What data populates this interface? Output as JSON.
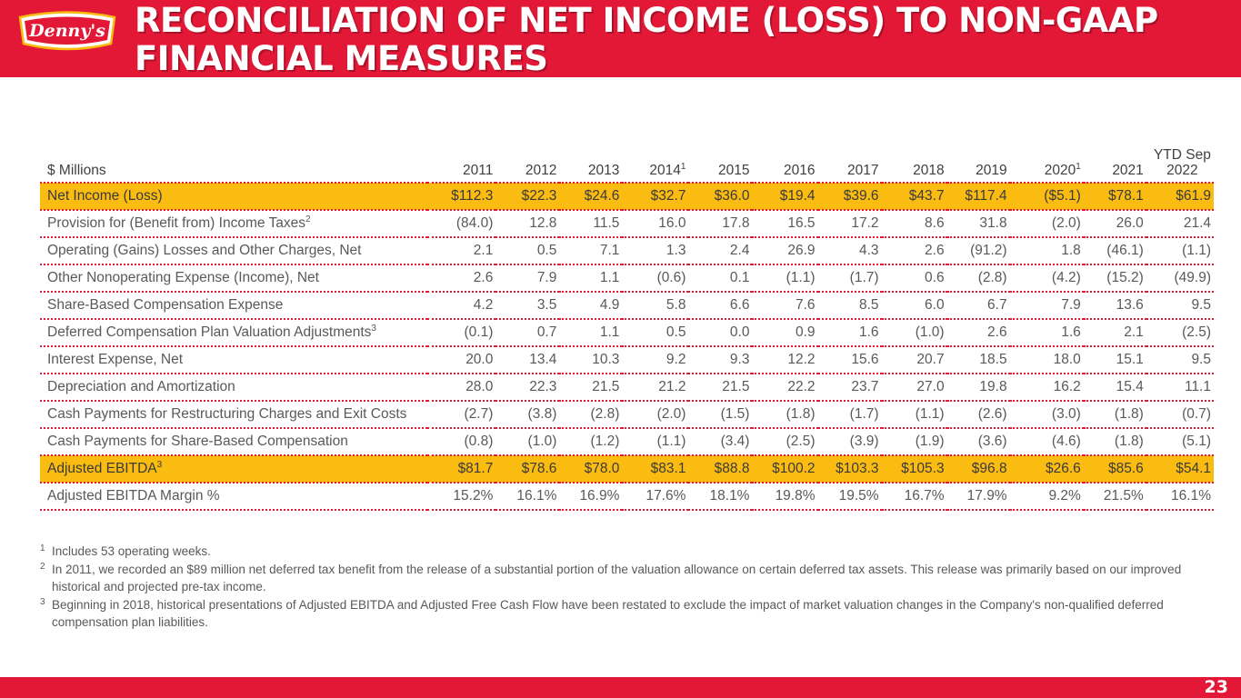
{
  "header": {
    "title": "RECONCILIATION OF NET INCOME (LOSS) TO NON-GAAP FINANCIAL MEASURES",
    "logo_text": "Denny's",
    "bar_color": "#e31837"
  },
  "table": {
    "unit_label": "$ Millions",
    "columns": [
      {
        "label": "2011",
        "sup": ""
      },
      {
        "label": "2012",
        "sup": ""
      },
      {
        "label": "2013",
        "sup": ""
      },
      {
        "label": "2014",
        "sup": "1"
      },
      {
        "label": "2015",
        "sup": ""
      },
      {
        "label": "2016",
        "sup": ""
      },
      {
        "label": "2017",
        "sup": ""
      },
      {
        "label": "2018",
        "sup": ""
      },
      {
        "label": "2019",
        "sup": ""
      },
      {
        "label": "2020",
        "sup": "1"
      },
      {
        "label": "2021",
        "sup": ""
      },
      {
        "label": "YTD Sep 2022",
        "sup": ""
      }
    ],
    "rows": [
      {
        "label": "Net Income (Loss)",
        "sup": "",
        "highlight": true,
        "values": [
          "$112.3",
          "$22.3",
          "$24.6",
          "$32.7",
          "$36.0",
          "$19.4",
          "$39.6",
          "$43.7",
          "$117.4",
          "($5.1)",
          "$78.1",
          "$61.9"
        ]
      },
      {
        "label": "Provision for (Benefit from) Income Taxes",
        "sup": "2",
        "highlight": false,
        "values": [
          "(84.0)",
          "12.8",
          "11.5",
          "16.0",
          "17.8",
          "16.5",
          "17.2",
          "8.6",
          "31.8",
          "(2.0)",
          "26.0",
          "21.4"
        ]
      },
      {
        "label": "Operating (Gains) Losses and Other Charges, Net",
        "sup": "",
        "highlight": false,
        "values": [
          "2.1",
          "0.5",
          "7.1",
          "1.3",
          "2.4",
          "26.9",
          "4.3",
          "2.6",
          "(91.2)",
          "1.8",
          "(46.1)",
          "(1.1)"
        ]
      },
      {
        "label": "Other Nonoperating Expense (Income), Net",
        "sup": "",
        "highlight": false,
        "values": [
          "2.6",
          "7.9",
          "1.1",
          "(0.6)",
          "0.1",
          "(1.1)",
          "(1.7)",
          "0.6",
          "(2.8)",
          "(4.2)",
          "(15.2)",
          "(49.9)"
        ]
      },
      {
        "label": "Share-Based Compensation Expense",
        "sup": "",
        "highlight": false,
        "values": [
          "4.2",
          "3.5",
          "4.9",
          "5.8",
          "6.6",
          "7.6",
          "8.5",
          "6.0",
          "6.7",
          "7.9",
          "13.6",
          "9.5"
        ]
      },
      {
        "label": "Deferred Compensation Plan Valuation Adjustments",
        "sup": "3",
        "highlight": false,
        "values": [
          "(0.1)",
          "0.7",
          "1.1",
          "0.5",
          "0.0",
          "0.9",
          "1.6",
          "(1.0)",
          "2.6",
          "1.6",
          "2.1",
          "(2.5)"
        ]
      },
      {
        "label": "Interest Expense, Net",
        "sup": "",
        "highlight": false,
        "values": [
          "20.0",
          "13.4",
          "10.3",
          "9.2",
          "9.3",
          "12.2",
          "15.6",
          "20.7",
          "18.5",
          "18.0",
          "15.1",
          "9.5"
        ]
      },
      {
        "label": "Depreciation and Amortization",
        "sup": "",
        "highlight": false,
        "values": [
          "28.0",
          "22.3",
          "21.5",
          "21.2",
          "21.5",
          "22.2",
          "23.7",
          "27.0",
          "19.8",
          "16.2",
          "15.4",
          "11.1"
        ]
      },
      {
        "label": "Cash Payments for Restructuring Charges and Exit Costs",
        "sup": "",
        "highlight": false,
        "values": [
          "(2.7)",
          "(3.8)",
          "(2.8)",
          "(2.0)",
          "(1.5)",
          "(1.8)",
          "(1.7)",
          "(1.1)",
          "(2.6)",
          "(3.0)",
          "(1.8)",
          "(0.7)"
        ]
      },
      {
        "label": "Cash Payments for Share-Based Compensation",
        "sup": "",
        "highlight": false,
        "values": [
          "(0.8)",
          "(1.0)",
          "(1.2)",
          "(1.1)",
          "(3.4)",
          "(2.5)",
          "(3.9)",
          "(1.9)",
          "(3.6)",
          "(4.6)",
          "(1.8)",
          "(5.1)"
        ]
      },
      {
        "label": "Adjusted EBITDA",
        "sup": "3",
        "highlight": true,
        "values": [
          "$81.7",
          "$78.6",
          "$78.0",
          "$83.1",
          "$88.8",
          "$100.2",
          "$103.3",
          "$105.3",
          "$96.8",
          "$26.6",
          "$85.6",
          "$54.1"
        ]
      },
      {
        "label": "Adjusted EBITDA Margin %",
        "sup": "",
        "highlight": false,
        "values": [
          "15.2%",
          "16.1%",
          "16.9%",
          "17.6%",
          "18.1%",
          "19.8%",
          "19.5%",
          "16.7%",
          "17.9%",
          "9.2%",
          "21.5%",
          "16.1%"
        ]
      }
    ],
    "highlight_color": "#fbbc12"
  },
  "footnotes": [
    {
      "mark": "1",
      "text": "Includes 53 operating weeks."
    },
    {
      "mark": "2",
      "text": "In 2011, we recorded an $89 million net deferred tax benefit from the release of a substantial portion of the valuation allowance on certain deferred tax assets. This release was primarily based on our improved historical and projected pre-tax income."
    },
    {
      "mark": "3",
      "text": "Beginning in 2018, historical presentations of Adjusted EBITDA and Adjusted Free Cash Flow have been restated to exclude the impact of market valuation changes in the Company's non-qualified deferred compensation plan liabilities."
    }
  ],
  "footer": {
    "page_number": "23"
  }
}
